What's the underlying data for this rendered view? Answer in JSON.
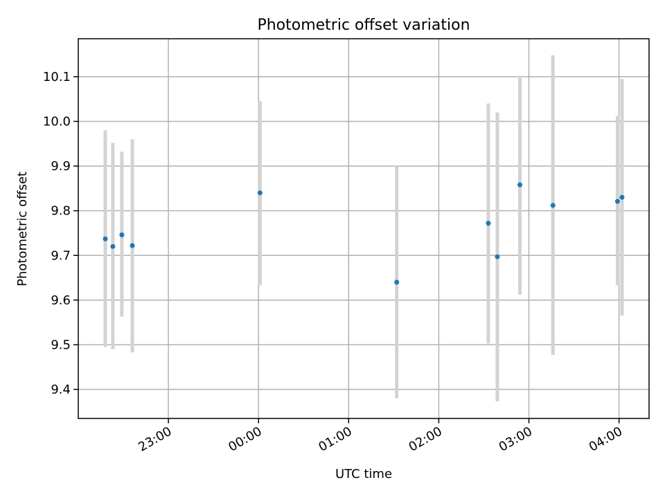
{
  "chart_data": {
    "type": "scatter",
    "title": "Photometric offset variation",
    "xlabel": "UTC time",
    "ylabel": "Photometric offset",
    "x_axis_type": "time",
    "xlim": [
      "22:00",
      "04:20"
    ],
    "ylim": [
      9.335,
      10.185
    ],
    "x_ticks": [
      "23:00",
      "00:00",
      "01:00",
      "02:00",
      "03:00",
      "04:00"
    ],
    "y_ticks": [
      "9.4",
      "9.5",
      "9.6",
      "9.7",
      "9.8",
      "9.9",
      "10.0",
      "10.1"
    ],
    "grid": true,
    "point_color": "#1f77b4",
    "errorbar_color": "#d3d3d3",
    "series": [
      {
        "x": [
          "22:18",
          "22:23",
          "22:29",
          "22:36",
          "00:01",
          "01:32",
          "02:33",
          "02:39",
          "02:54",
          "03:16",
          "03:59",
          "04:02"
        ],
        "y": [
          9.737,
          9.72,
          9.746,
          9.722,
          9.84,
          9.64,
          9.772,
          9.697,
          9.858,
          9.812,
          9.821,
          9.83
        ],
        "yerr_low": [
          9.495,
          9.49,
          9.563,
          9.483,
          9.633,
          9.38,
          9.503,
          9.373,
          9.612,
          9.477,
          9.633,
          9.565
        ],
        "yerr_high": [
          9.98,
          9.952,
          9.932,
          9.96,
          10.045,
          9.9,
          10.04,
          10.02,
          10.102,
          10.148,
          10.012,
          10.095
        ]
      }
    ]
  }
}
